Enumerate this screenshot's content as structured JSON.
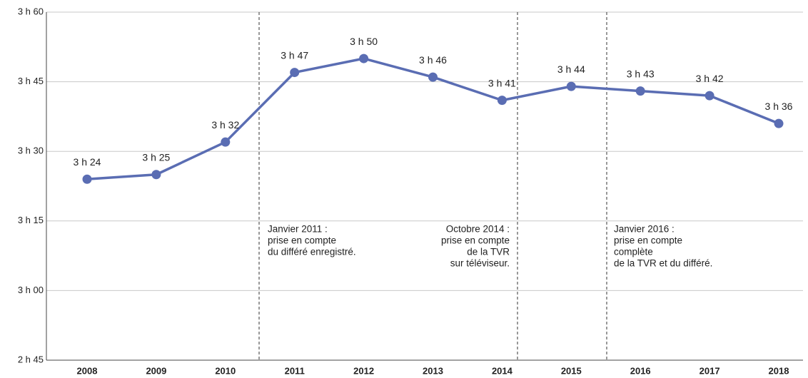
{
  "chart_data": {
    "type": "line",
    "categories": [
      "2008",
      "2009",
      "2010",
      "2011",
      "2012",
      "2013",
      "2014",
      "2015",
      "2016",
      "2017",
      "2018"
    ],
    "series": [
      {
        "color": "#5a6db3",
        "values": [
          204,
          205,
          212,
          227,
          230,
          226,
          221,
          224,
          223,
          222,
          216
        ],
        "value_labels": [
          "3 h 24",
          "3 h 25",
          "3 h 32",
          "3 h 47",
          "3 h 50",
          "3 h 46",
          "3 h 41",
          "3 h 44",
          "3 h 43",
          "3 h 42",
          "3 h 36"
        ]
      }
    ],
    "ylim": [
      165,
      240
    ],
    "yticks": [
      {
        "value": 165,
        "label": "2 h 45"
      },
      {
        "value": 180,
        "label": "3 h 00"
      },
      {
        "value": 195,
        "label": "3 h 15"
      },
      {
        "value": 210,
        "label": "3 h 30"
      },
      {
        "value": 225,
        "label": "3 h 45"
      },
      {
        "value": 240,
        "label": "3 h 60"
      }
    ],
    "grid": true,
    "annotations": [
      [
        "Janvier 2011 :",
        "prise en compte",
        "du différé enregistré."
      ],
      [
        "Octobre 2014 :",
        "prise en compte",
        "de la TVR",
        "sur téléviseur."
      ],
      [
        "Janvier 2016 :",
        "prise en compte",
        "complète",
        "de la TVR et du différé."
      ]
    ]
  }
}
